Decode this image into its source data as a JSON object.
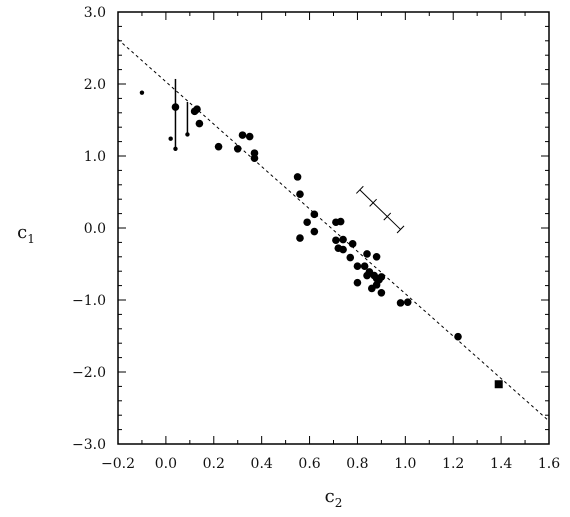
{
  "chart_data": {
    "type": "scatter",
    "title": "",
    "xlabel": {
      "main": "c",
      "sub": "2"
    },
    "ylabel": {
      "main": "c",
      "sub": "1"
    },
    "xlim": [
      -0.2,
      1.6
    ],
    "ylim": [
      -3.0,
      3.0
    ],
    "x_ticks": [
      -0.2,
      0.0,
      0.2,
      0.4,
      0.6,
      0.8,
      1.0,
      1.2,
      1.4,
      1.6
    ],
    "x_tick_labels": [
      "−0.2",
      "0.0",
      "0.2",
      "0.4",
      "0.6",
      "0.8",
      "1.0",
      "1.2",
      "1.4",
      "1.6"
    ],
    "y_ticks": [
      -3.0,
      -2.0,
      -1.0,
      0.0,
      1.0,
      2.0,
      3.0
    ],
    "y_tick_labels": [
      "−3.0",
      "−2.0",
      "−1.0",
      "0.0",
      "1.0",
      "2.0",
      "3.0"
    ],
    "grid": false,
    "points": [
      {
        "x": 0.04,
        "y": 1.68
      },
      {
        "x": 0.12,
        "y": 1.62
      },
      {
        "x": 0.13,
        "y": 1.65
      },
      {
        "x": 0.14,
        "y": 1.45
      },
      {
        "x": 0.22,
        "y": 1.13
      },
      {
        "x": 0.3,
        "y": 1.1
      },
      {
        "x": 0.32,
        "y": 1.29
      },
      {
        "x": 0.35,
        "y": 1.27
      },
      {
        "x": 0.37,
        "y": 0.97
      },
      {
        "x": 0.37,
        "y": 1.04
      },
      {
        "x": 0.55,
        "y": 0.71
      },
      {
        "x": 0.56,
        "y": 0.47
      },
      {
        "x": 0.56,
        "y": -0.14
      },
      {
        "x": 0.59,
        "y": 0.08
      },
      {
        "x": 0.62,
        "y": 0.19
      },
      {
        "x": 0.62,
        "y": -0.05
      },
      {
        "x": 0.71,
        "y": 0.08
      },
      {
        "x": 0.73,
        "y": 0.09
      },
      {
        "x": 0.71,
        "y": -0.17
      },
      {
        "x": 0.72,
        "y": -0.28
      },
      {
        "x": 0.74,
        "y": -0.3
      },
      {
        "x": 0.74,
        "y": -0.16
      },
      {
        "x": 0.77,
        "y": -0.41
      },
      {
        "x": 0.78,
        "y": -0.22
      },
      {
        "x": 0.8,
        "y": -0.53
      },
      {
        "x": 0.8,
        "y": -0.76
      },
      {
        "x": 0.83,
        "y": -0.53
      },
      {
        "x": 0.84,
        "y": -0.36
      },
      {
        "x": 0.84,
        "y": -0.66
      },
      {
        "x": 0.85,
        "y": -0.61
      },
      {
        "x": 0.86,
        "y": -0.84
      },
      {
        "x": 0.87,
        "y": -0.66
      },
      {
        "x": 0.88,
        "y": -0.4
      },
      {
        "x": 0.88,
        "y": -0.7
      },
      {
        "x": 0.88,
        "y": -0.79
      },
      {
        "x": 0.89,
        "y": -0.72
      },
      {
        "x": 0.9,
        "y": -0.68
      },
      {
        "x": 0.9,
        "y": -0.9
      },
      {
        "x": 0.98,
        "y": -1.04
      },
      {
        "x": 1.01,
        "y": -1.03
      },
      {
        "x": 1.22,
        "y": -1.51
      }
    ],
    "small_points": [
      {
        "x": -0.1,
        "y": 1.88
      },
      {
        "x": 0.02,
        "y": 1.24
      },
      {
        "x": 0.04,
        "y": 1.1
      },
      {
        "x": 0.09,
        "y": 1.3
      }
    ],
    "square_points": [
      {
        "x": 1.39,
        "y": -2.17
      }
    ],
    "vertical_bars": [
      {
        "x": 0.04,
        "y_low": 1.1,
        "y_high": 2.07
      },
      {
        "x": 0.09,
        "y_low": 1.3,
        "y_high": 1.75
      }
    ],
    "error_bar_example": {
      "x1": 0.81,
      "y1": 0.53,
      "x2": 0.98,
      "y2": -0.02,
      "center": {
        "x": 0.895,
        "y": 0.255
      },
      "inner_half_length": 0.1
    },
    "fit_line": {
      "x1": -0.2,
      "y1": 2.62,
      "x2": 1.6,
      "y2": -2.68,
      "style": "dashed"
    }
  }
}
